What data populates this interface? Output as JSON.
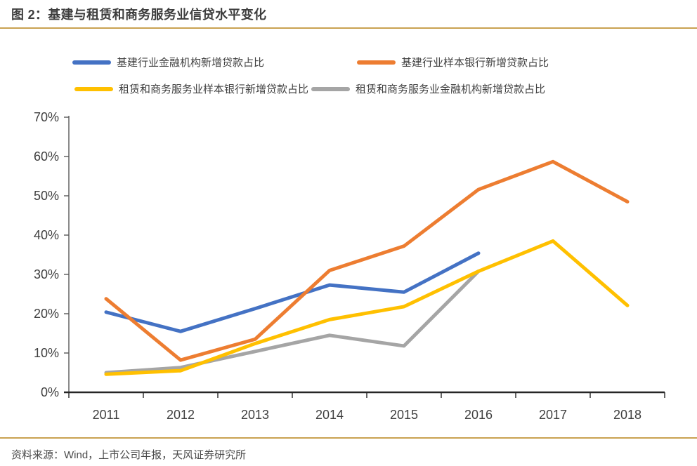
{
  "header": {
    "title": "图 2：基建与租赁和商务服务业信贷水平变化"
  },
  "chart_data": {
    "type": "line",
    "title": "基建与租赁和商务服务业信贷水平变化",
    "categories": [
      "2011",
      "2012",
      "2013",
      "2014",
      "2015",
      "2016",
      "2017",
      "2018"
    ],
    "series": [
      {
        "name": "基建行业金融机构新增贷款占比",
        "key": "infra-financial-institutions",
        "color": "#4472C4",
        "values": [
          20.4,
          15.5,
          21.3,
          27.3,
          25.5,
          35.4,
          null,
          null
        ]
      },
      {
        "name": "基建行业样本银行新增贷款占比",
        "key": "infra-sample-banks",
        "color": "#ED7D31",
        "values": [
          23.8,
          8.2,
          13.5,
          31.0,
          37.2,
          51.6,
          58.7,
          48.5
        ]
      },
      {
        "name": "租赁和商务服务业样本银行新增贷款占比",
        "key": "leasing-sample-banks",
        "color": "#FFC000",
        "values": [
          4.6,
          5.5,
          12.4,
          18.5,
          21.8,
          30.8,
          38.5,
          22.1
        ]
      },
      {
        "name": "租赁和商务服务业金融机构新增贷款占比",
        "key": "leasing-financial-institutions",
        "color": "#A5A5A5",
        "values": [
          5.0,
          6.3,
          10.4,
          14.5,
          11.8,
          30.8,
          null,
          null
        ]
      }
    ],
    "draw_order": [
      0,
      3,
      1,
      2
    ],
    "xlabel": "",
    "ylabel": "",
    "ylim": [
      0,
      70
    ],
    "y_ticks": [
      "0%",
      "10%",
      "20%",
      "30%",
      "40%",
      "50%",
      "60%",
      "70%"
    ],
    "grid": false,
    "legend_position": "top"
  },
  "colors": {
    "accent_rule": "#C9A251",
    "axis_text": "#3f3f3f",
    "y_axis_line": "#595959",
    "x_axis_line": "#262626"
  },
  "footer": {
    "source": "资料来源：Wind，上市公司年报，天风证券研究所"
  }
}
